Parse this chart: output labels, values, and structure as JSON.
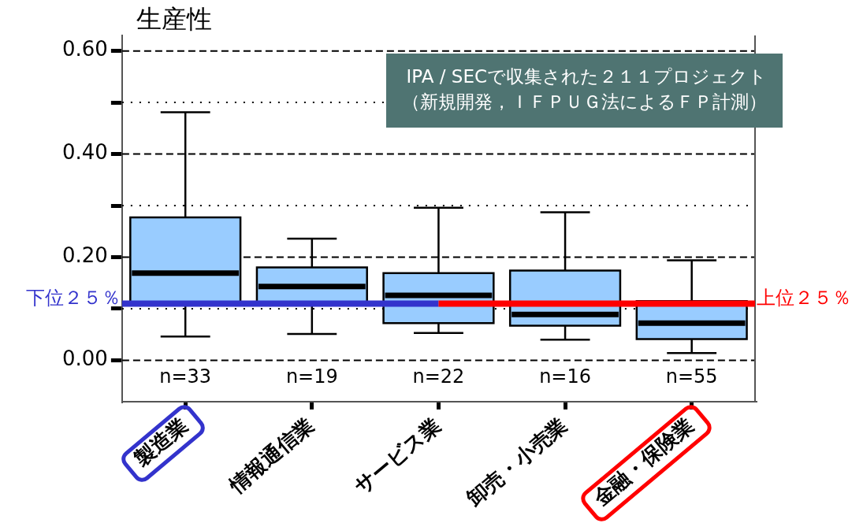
{
  "chart_data": {
    "type": "box",
    "title": "生産性",
    "categories": [
      "製造業",
      "情報通信業",
      "サービス業",
      "卸売・小売業",
      "金融・保険業"
    ],
    "color": "#99ccff",
    "boxes": [
      {
        "low": 0.046,
        "q1": 0.11,
        "median": 0.169,
        "q3": 0.277,
        "high": 0.481
      },
      {
        "low": 0.051,
        "q1": 0.11,
        "median": 0.143,
        "q3": 0.18,
        "high": 0.236
      },
      {
        "low": 0.053,
        "q1": 0.072,
        "median": 0.126,
        "q3": 0.169,
        "high": 0.296
      },
      {
        "low": 0.04,
        "q1": 0.067,
        "median": 0.089,
        "q3": 0.174,
        "high": 0.287
      },
      {
        "low": 0.014,
        "q1": 0.041,
        "median": 0.072,
        "q3": 0.115,
        "high": 0.194
      }
    ],
    "ylim": [
      -0.08,
      0.63
    ],
    "yticks": [
      {
        "value": 0,
        "label": "0.00"
      },
      {
        "value": 0.1,
        "label": null
      },
      {
        "value": 0.2,
        "label": "0.20"
      },
      {
        "value": 0.3,
        "label": null
      },
      {
        "value": 0.4,
        "label": "0.40"
      },
      {
        "value": 0.5,
        "label": null
      },
      {
        "value": 0.6,
        "label": "0.60"
      }
    ],
    "grid": "y",
    "ref_lines": [
      {
        "axis": "y",
        "value": 0.11,
        "label": "下位２５％",
        "color": "#3333cc"
      },
      {
        "axis": "y",
        "value": 0.11,
        "label": "上位２５％",
        "color": "#ff0000"
      }
    ],
    "annotations": [
      "n=33",
      "n=19",
      "n=22",
      "n=16",
      "n=55",
      "IPA / SECで収集された２１１プロジェクト",
      "（新規開発，ＩＦＰＵＧ法によるＦＰ計測）"
    ]
  }
}
